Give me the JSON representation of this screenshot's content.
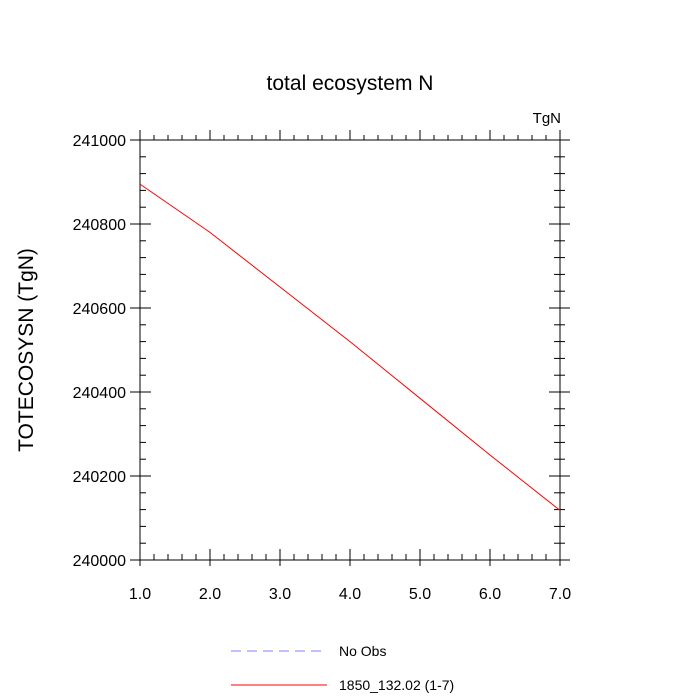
{
  "chart_data": {
    "type": "line",
    "title": "total ecosystem N",
    "units": "TgN",
    "xlabel": "",
    "ylabel": "TOTECOSYSN  (TgN)",
    "xlim": [
      1.0,
      7.0
    ],
    "ylim": [
      240000,
      241000
    ],
    "x_ticks": [
      1.0,
      2.0,
      3.0,
      4.0,
      5.0,
      6.0,
      7.0
    ],
    "x_tick_labels": [
      "1.0",
      "2.0",
      "3.0",
      "4.0",
      "5.0",
      "6.0",
      "7.0"
    ],
    "y_ticks": [
      240000,
      240200,
      240400,
      240600,
      240800,
      241000
    ],
    "y_tick_labels": [
      "240000",
      "240200",
      "240400",
      "240600",
      "240800",
      "241000"
    ],
    "grid": false,
    "legend_position": "bottom",
    "series": [
      {
        "name": "No Obs",
        "color": "#8080ff",
        "dash": "dashed",
        "x": [],
        "y": []
      },
      {
        "name": "1850_132.02 (1-7)",
        "color": "#ff0000",
        "dash": "solid",
        "x": [
          1,
          2,
          3,
          4,
          5,
          6,
          7
        ],
        "y": [
          240895,
          240780,
          240650,
          240520,
          240385,
          240250,
          240118
        ]
      }
    ]
  }
}
